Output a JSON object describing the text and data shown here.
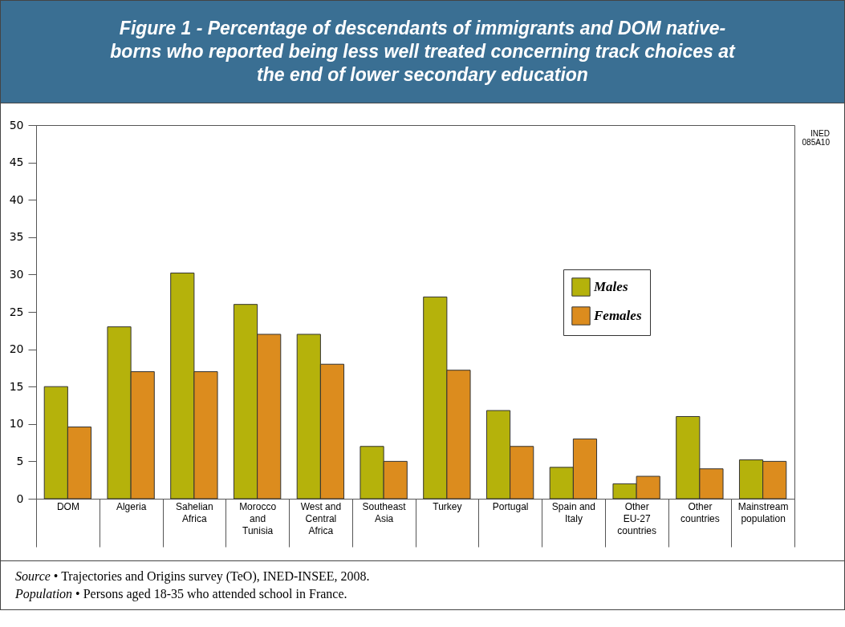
{
  "chart_data": {
    "type": "bar",
    "title": "Figure 1 - Percentage of descendants of immigrants and DOM native-borns who reported being less well treated concerning track choices at the end of lower secondary education",
    "categories": [
      "DOM",
      "Algeria",
      "Sahelian Africa",
      "Morocco and Tunisia",
      "West and Central Africa",
      "Southeast Asia",
      "Turkey",
      "Portugal",
      "Spain and Italy",
      "Other EU-27 countries",
      "Other countries",
      "Mainstream population"
    ],
    "series": [
      {
        "name": "Males",
        "color": "#b5b20b",
        "values": [
          15,
          23,
          30.2,
          26,
          22,
          7,
          27,
          11.8,
          4.2,
          2,
          11,
          5.2
        ]
      },
      {
        "name": "Females",
        "color": "#dc8c1e",
        "values": [
          9.6,
          17,
          17,
          22,
          18,
          5,
          17.2,
          7,
          8,
          3,
          4,
          5
        ]
      }
    ],
    "ylim": [
      0,
      50
    ],
    "yticks": [
      0,
      5,
      10,
      15,
      20,
      25,
      30,
      35,
      40,
      45,
      50
    ],
    "grid": false,
    "legend": "top right",
    "annotations": [
      "INED 085A10",
      "Source • Trajectories and Origins survey (TeO), INED-INSEE, 2008.",
      "Population • Persons aged 18-35 who attended school in France."
    ]
  }
}
